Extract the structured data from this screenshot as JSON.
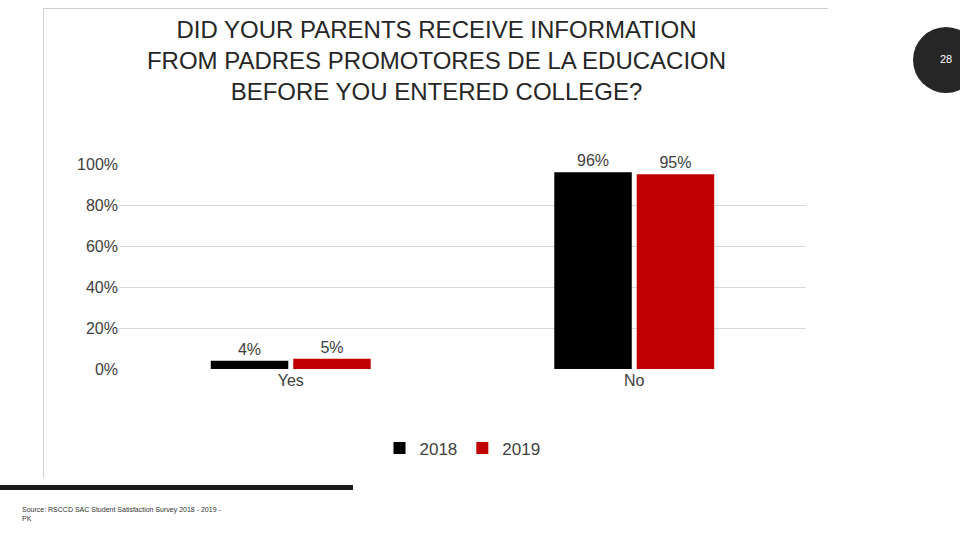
{
  "chart_data": {
    "type": "bar",
    "title": "DID YOUR PARENTS RECEIVE INFORMATION\nFROM PADRES PROMOTORES DE LA EDUCACION\nBEFORE YOU ENTERED COLLEGE?",
    "categories": [
      "Yes",
      "No"
    ],
    "series": [
      {
        "name": "2018",
        "color": "#000000",
        "values": [
          4,
          96
        ],
        "value_labels": [
          "4%",
          "96%"
        ]
      },
      {
        "name": "2019",
        "color": "#c00000",
        "values": [
          5,
          95
        ],
        "value_labels": [
          "5%",
          "95%"
        ]
      }
    ],
    "ylim": [
      0,
      100
    ],
    "yticks": [
      {
        "value": 0,
        "label": "0%"
      },
      {
        "value": 20,
        "label": "20%"
      },
      {
        "value": 40,
        "label": "40%"
      },
      {
        "value": 60,
        "label": "60%"
      },
      {
        "value": 80,
        "label": "80%"
      },
      {
        "value": 100,
        "label": "100%"
      }
    ],
    "grid": true,
    "data_labels": true,
    "legend": "bottom"
  },
  "page_number": 28,
  "source": "Source: RSCCD SAC Student Satisfaction Survey 2018 - 2019 - PK"
}
